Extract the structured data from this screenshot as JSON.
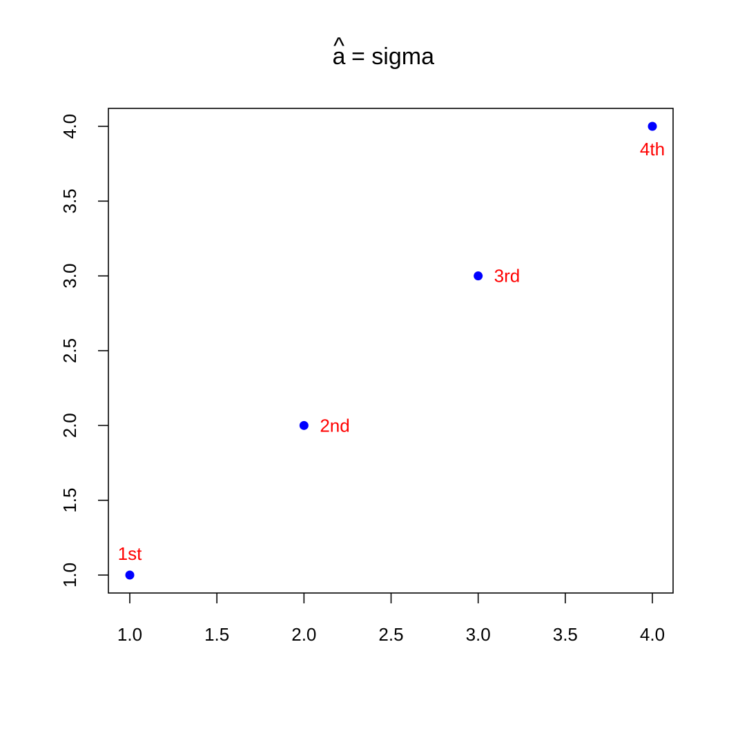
{
  "chart_data": {
    "type": "scatter",
    "title": {
      "symbol": "a",
      "accent": "^",
      "text": "= sigma"
    },
    "xlabel": "",
    "ylabel": "",
    "xlim": [
      1.0,
      4.0
    ],
    "ylim": [
      1.0,
      4.0
    ],
    "x_ticks": [
      "1.0",
      "1.5",
      "2.0",
      "2.5",
      "3.0",
      "3.5",
      "4.0"
    ],
    "y_ticks": [
      "1.0",
      "1.5",
      "2.0",
      "2.5",
      "3.0",
      "3.5",
      "4.0"
    ],
    "grid": false,
    "series": [
      {
        "x": [
          1,
          2,
          3,
          4
        ],
        "y": [
          1,
          2,
          3,
          4
        ],
        "color": "#0000ff",
        "labels": [
          "1st",
          "2nd",
          "3rd",
          "4th"
        ],
        "label_positions": [
          "above",
          "right",
          "right",
          "below"
        ],
        "label_color": "#ff0000"
      }
    ]
  }
}
